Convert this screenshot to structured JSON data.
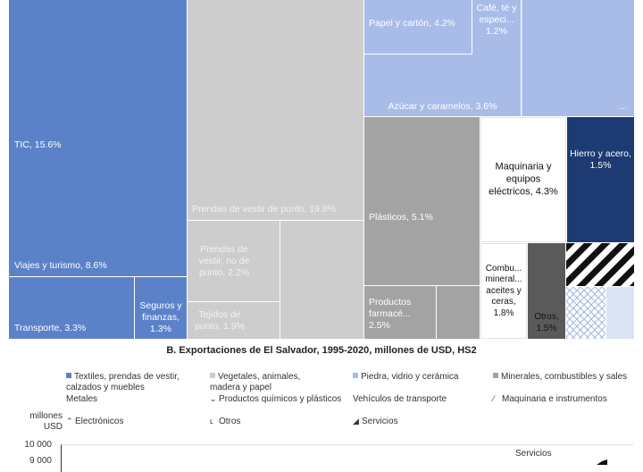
{
  "colors": {
    "blue": "#5b82c9",
    "grey_light": "#cdcdcd",
    "grey_mid": "#a3a3a3",
    "light_blue": "#a9bce8",
    "dark_navy": "#1d3a72",
    "dark_grey": "#5a5a5a",
    "white": "#ffffff"
  },
  "chart_data": [
    {
      "type": "treemap",
      "units": "% of exports",
      "tiles": [
        {
          "label": "TIC, 15.6%",
          "name": "TIC",
          "value": 15.6,
          "color": "blue"
        },
        {
          "label": "Viajes y turismo, 8.6%",
          "name": "Viajes y turismo",
          "value": 8.6,
          "color": "blue"
        },
        {
          "label": "Transporte, 3.3%",
          "name": "Transporte",
          "value": 3.3,
          "color": "blue"
        },
        {
          "label": "Seguros y finanzas, 1.3%",
          "name": "Seguros y finanzas",
          "value": 1.3,
          "color": "blue"
        },
        {
          "label": "Prendas de vestir de punto, 19.8%",
          "name": "Prendas de vestir de punto",
          "value": 19.8,
          "color": "grey_light"
        },
        {
          "label": "Prendas de vestir, no de punto, 2.2%",
          "name": "Prendas de vestir, no de punto",
          "value": 2.2,
          "color": "grey_light"
        },
        {
          "label": "Tejidos de punto, 1.9%",
          "name": "Tejidos de punto",
          "value": 1.9,
          "color": "grey_light"
        },
        {
          "label": "Papel y cartón, 4.2%",
          "name": "Papel y cartón",
          "value": 4.2,
          "color": "light_blue"
        },
        {
          "label": "Café, té y especi... 1.2%",
          "name": "Café, té y especi...",
          "value": 1.2,
          "color": "light_blue"
        },
        {
          "label": "Azúcar y caramelos, 3.6%",
          "name": "Azúcar y caramelos",
          "value": 3.6,
          "color": "light_blue"
        },
        {
          "label": "Plásticos, 5.1%",
          "name": "Plásticos",
          "value": 5.1,
          "color": "grey_mid"
        },
        {
          "label": "Productos farmacé... 2.5%",
          "name": "Productos farmacé...",
          "value": 2.5,
          "color": "grey_mid"
        },
        {
          "label": "Maquinaria y equipos eléctricos, 4.3%",
          "name": "Maquinaria y equipos eléctricos",
          "value": 4.3,
          "color": "white"
        },
        {
          "label": "Hierro y acero, 1.5%",
          "name": "Hierro y acero",
          "value": 1.5,
          "color": "dark_navy"
        },
        {
          "label": "Combu... mineral... aceites y ceras, 1.8%",
          "name": "Combu... mineral... aceites y ceras",
          "value": 1.8,
          "color": "white"
        },
        {
          "label": "Otros, 1.5%",
          "name": "Otros",
          "value": 1.5,
          "color": "dark_grey"
        }
      ]
    },
    {
      "type": "area",
      "title": "B. Exportaciones de El Salvador, 1995-2020, millones de USD, HS2",
      "ylabel": "millones USD",
      "y_ticks": [
        10000,
        9000
      ],
      "legend": [
        "Textiles, prendas de vestir, calzados y muebles",
        "Vegetales, animales, madera y papel",
        "Piedra, vidrio y cerámica",
        "Minerales, combustibles y sales",
        "Metales",
        "Productos químicos y plásticos",
        "Vehículos de transporte",
        "Maquinaria e instrumentos",
        "Electrónicos",
        "Otros",
        "Servicios"
      ],
      "annotations": [
        "Servicios"
      ]
    }
  ],
  "text": {
    "chart_b_title": "B. Exportaciones de El Salvador, 1995-2020, millones de USD, HS2",
    "y_unit": "millones\nUSD",
    "y_ticks": [
      "10 000",
      "9 000"
    ],
    "ellipsis": "...",
    "services_label": "Servicios"
  },
  "legend_items": [
    {
      "label": "Textiles, prendas de vestir,\ncalzados y muebles",
      "marker": "square",
      "color": "blue"
    },
    {
      "label": "Vegetales, animales,\nmadera y papel",
      "marker": "square",
      "color": "grey_light"
    },
    {
      "label": "Piedra, vidrio y cerámica",
      "marker": "square",
      "color": "light_blue"
    },
    {
      "label": "Minerales, combustibles y sales",
      "marker": "square",
      "color": "grey_mid"
    },
    {
      "label": "Metales",
      "marker": "none",
      "color": "white"
    },
    {
      "label": "Productos químicos y plásticos",
      "marker": "glyph",
      "glyph": "⌄"
    },
    {
      "label": "Vehículos de transporte",
      "marker": "none",
      "color": "white"
    },
    {
      "label": "Maquinaria e instrumentos",
      "marker": "glyph",
      "glyph": "⁄"
    },
    {
      "label": "Electrónicos",
      "marker": "glyph",
      "glyph": "⌃"
    },
    {
      "label": "Otros",
      "marker": "glyph",
      "glyph": "ʟ"
    },
    {
      "label": "Servicios",
      "marker": "glyph",
      "glyph": "◢"
    }
  ]
}
